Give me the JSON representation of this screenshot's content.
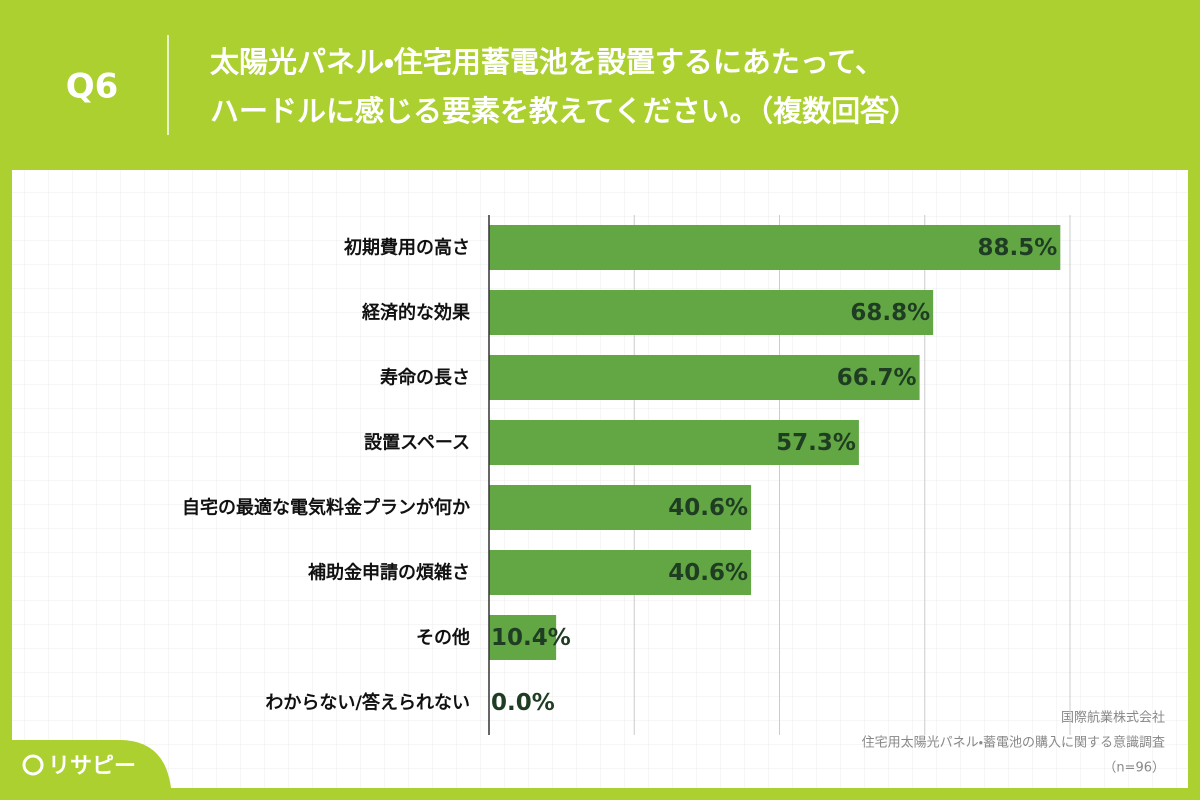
{
  "question": "Q6",
  "title": [
    "太陽光パネル・住宅用蓄電池を設置するにあたって、",
    "ハードルに感じる要素を教えてください。（複数回答）"
  ],
  "source": [
    "国際航業株式会社",
    "住宅用太陽光パネル・蓄電池の購入に関する意識調査",
    "（n=96）"
  ],
  "brand": "リサピー",
  "chart_data": {
    "type": "hbar",
    "categories": [
      "初期費用の高さ",
      "経済的な効果",
      "寿命の長さ",
      "設置スペース",
      "自宅の最適な電気料金プランが何か",
      "補助金申請の煩雑さ",
      "その他",
      "わからない/答えられない"
    ],
    "values": [
      88.5,
      68.8,
      66.7,
      57.3,
      40.6,
      40.6,
      10.4,
      0.0
    ],
    "value_labels": [
      "88.5%",
      "68.8%",
      "66.7%",
      "57.3%",
      "40.6%",
      "40.6%",
      "10.4%",
      "0.0%"
    ],
    "color": "#62a744",
    "xlim": [
      0,
      90
    ],
    "xticks": [
      0,
      22.5,
      45,
      67.5,
      90
    ],
    "grid": true
  }
}
